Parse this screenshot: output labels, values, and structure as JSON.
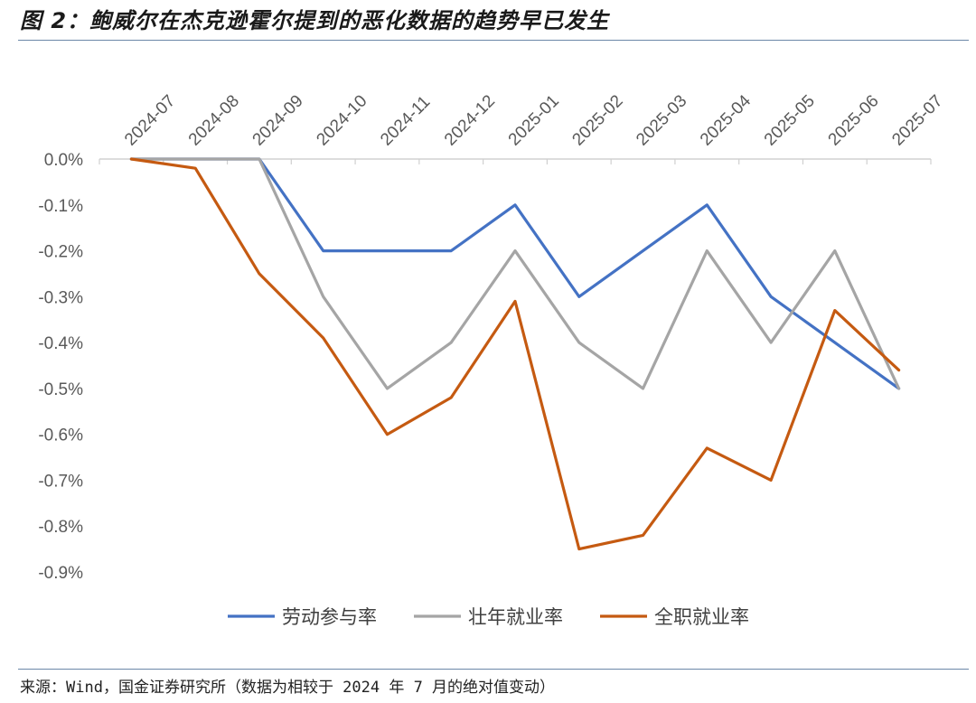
{
  "title": "图 2：鲍威尔在杰克逊霍尔提到的恶化数据的趋势早已发生",
  "source": "来源：Wind，国金证券研究所（数据为相较于 2024 年 7 月的绝对值变动）",
  "chart_data": {
    "type": "line",
    "categories": [
      "2024-07",
      "2024-08",
      "2024-09",
      "2024-10",
      "2024-11",
      "2024-12",
      "2025-01",
      "2025-02",
      "2025-03",
      "2025-04",
      "2025-05",
      "2025-06",
      "2025-07"
    ],
    "yticks": [
      "0.0%",
      "-0.1%",
      "-0.2%",
      "-0.3%",
      "-0.4%",
      "-0.5%",
      "-0.6%",
      "-0.7%",
      "-0.8%",
      "-0.9%"
    ],
    "ylim": [
      -0.9,
      0.0
    ],
    "legend_position": "bottom",
    "series": [
      {
        "name": "劳动参与率",
        "color": "#4472c4",
        "values": [
          0.0,
          0.0,
          0.0,
          -0.2,
          -0.2,
          -0.2,
          -0.1,
          -0.3,
          -0.2,
          -0.1,
          -0.3,
          -0.4,
          -0.5
        ]
      },
      {
        "name": "壮年就业率",
        "color": "#a5a5a5",
        "values": [
          0.0,
          0.0,
          0.0,
          -0.3,
          -0.5,
          -0.4,
          -0.2,
          -0.4,
          -0.5,
          -0.2,
          -0.4,
          -0.2,
          -0.5
        ]
      },
      {
        "name": "全职就业率",
        "color": "#c55a11",
        "values": [
          0.0,
          -0.02,
          -0.25,
          -0.39,
          -0.6,
          -0.52,
          -0.31,
          -0.85,
          -0.82,
          -0.63,
          -0.7,
          -0.33,
          -0.46
        ]
      }
    ]
  }
}
